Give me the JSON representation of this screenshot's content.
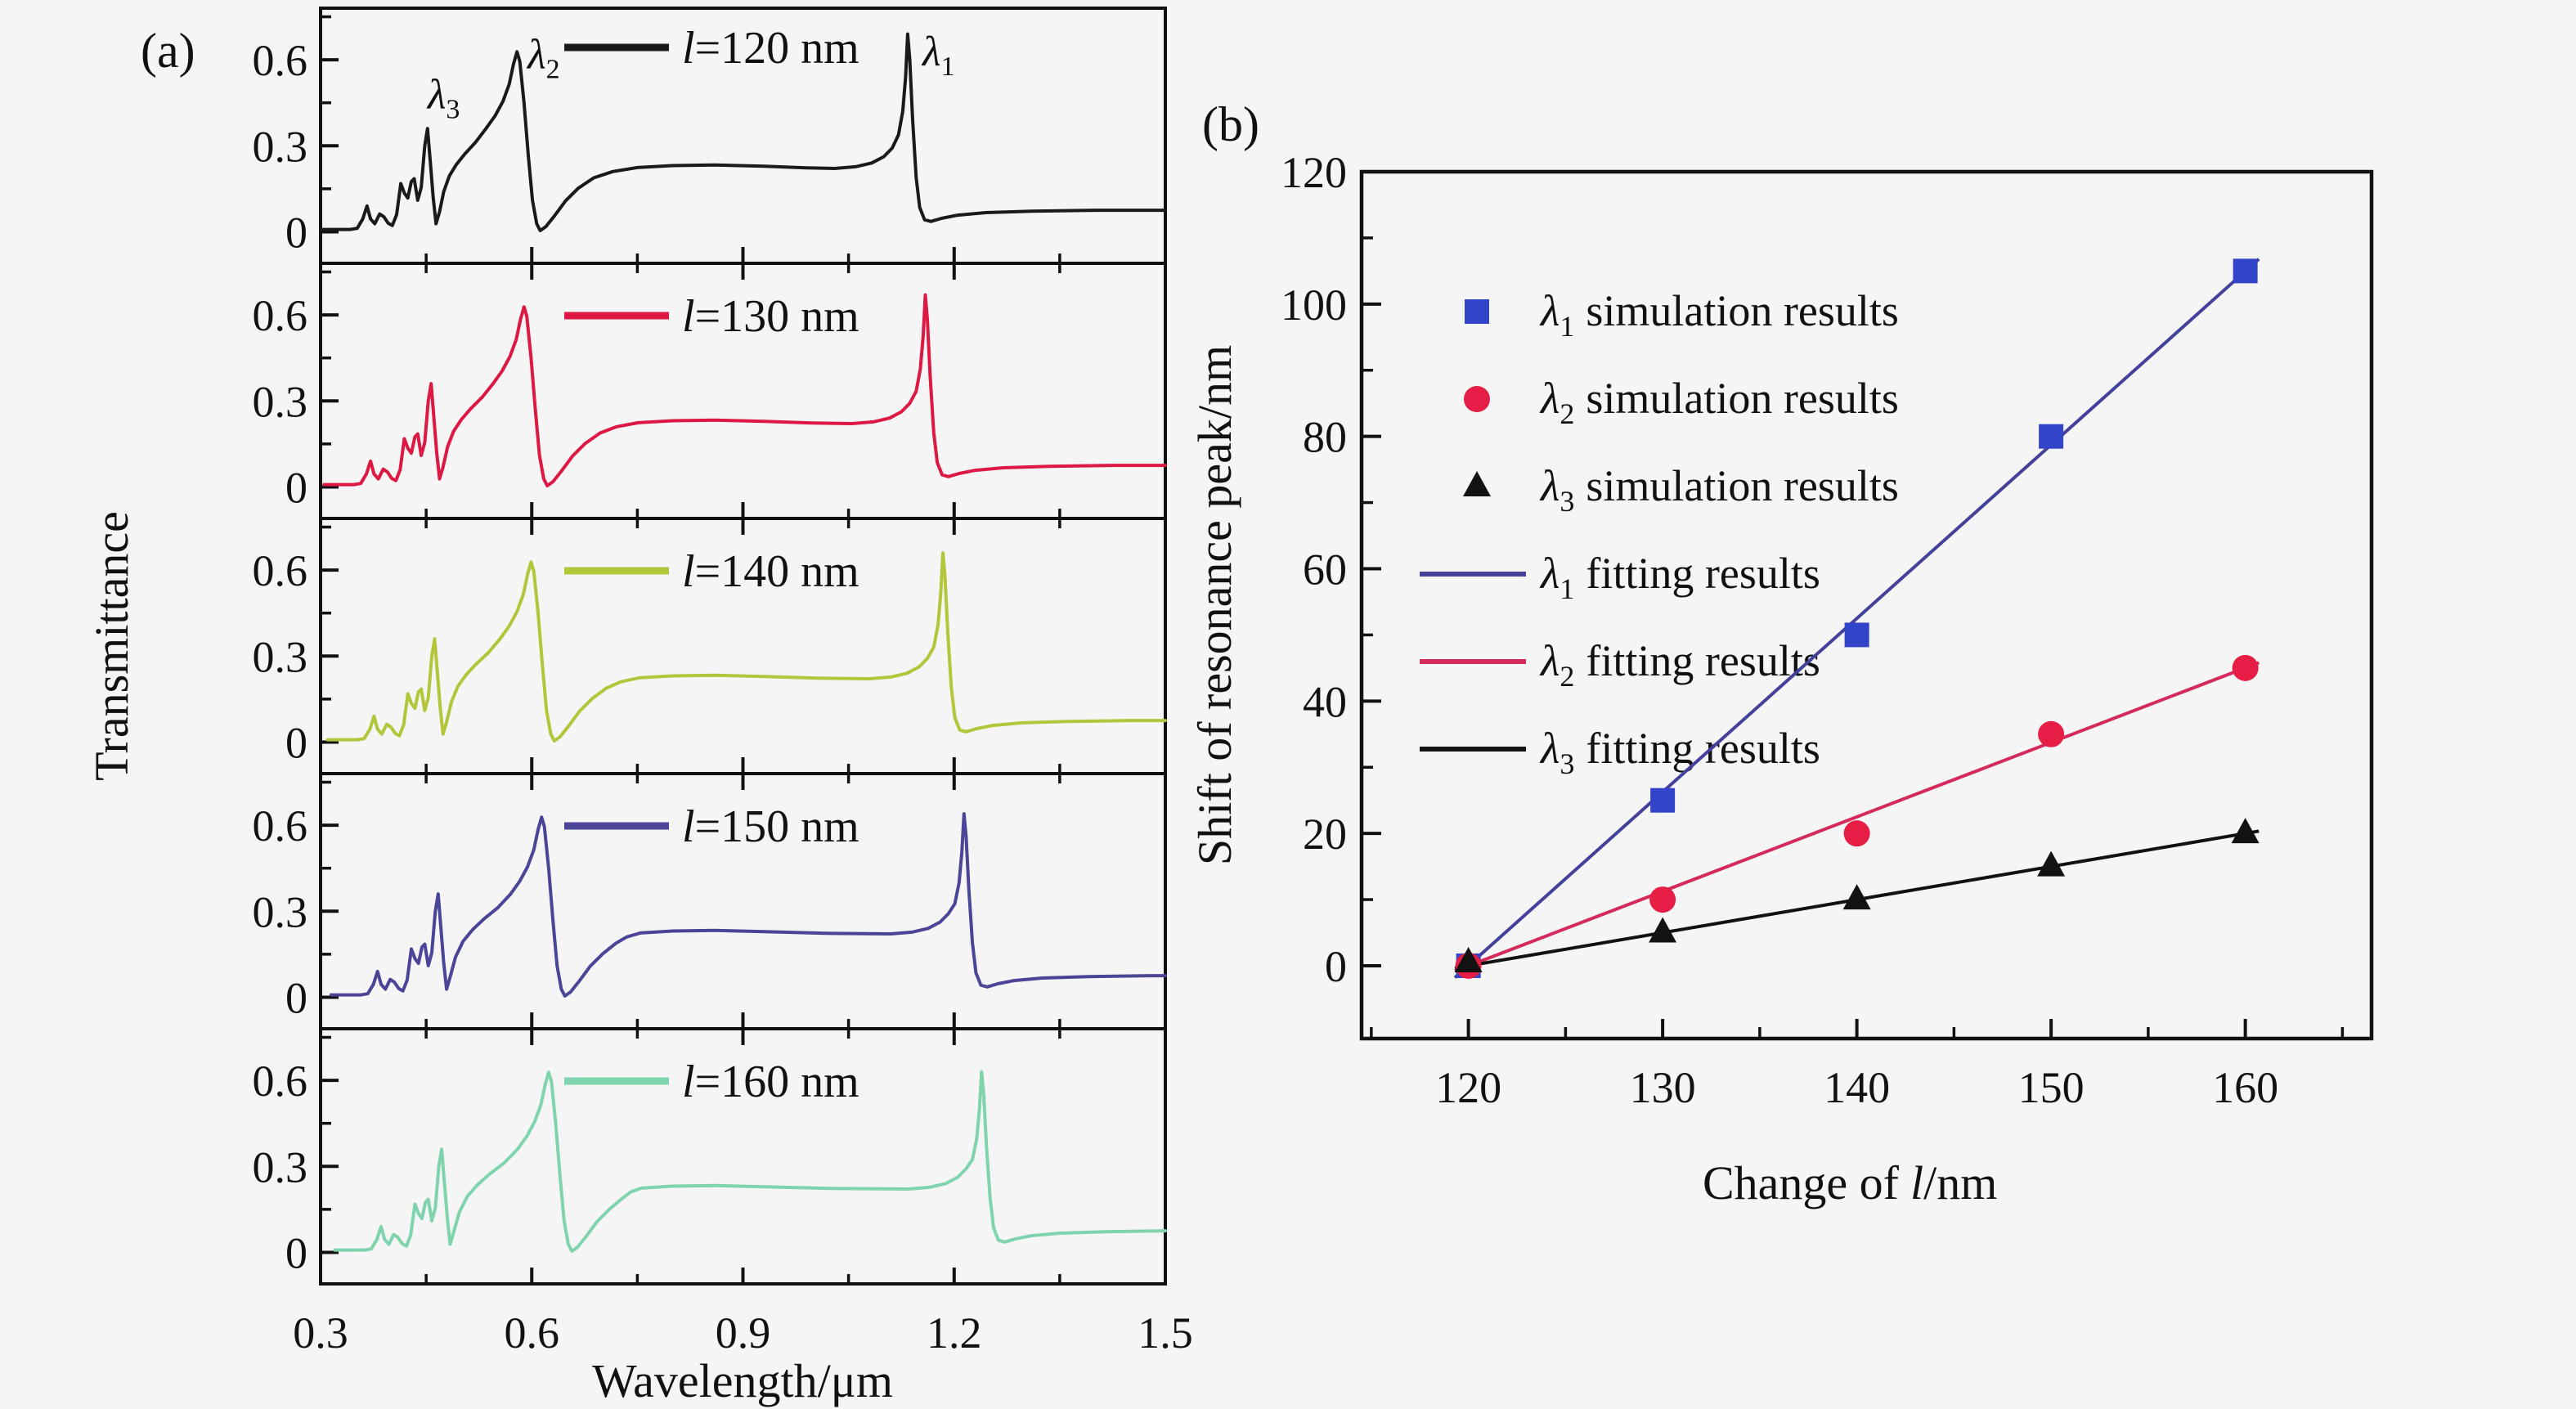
{
  "figure": {
    "panel_a_letter": "(a)",
    "panel_b_letter": "(b)",
    "background": "#f5f5f5",
    "axis_color": "#111111"
  },
  "chart_data": [
    {
      "type": "line",
      "id": "transmittance-spectra",
      "xlabel": "Wavelength/μm",
      "ylabel": "Transmittance",
      "x_range": [
        0.3,
        1.5
      ],
      "y_view": [
        -0.11,
        0.78
      ],
      "x_ticks": [
        0.3,
        0.6,
        0.9,
        1.2,
        1.5
      ],
      "x_minor": [
        0.45,
        0.75,
        1.05,
        1.35
      ],
      "x_inner_major": [
        0.6,
        0.9,
        1.2
      ],
      "y_ticks": [
        0,
        0.3,
        0.6
      ],
      "y_minor": [
        0.15,
        0.45,
        0.75
      ],
      "annotations": [
        {
          "sym": "λ",
          "sub": "3",
          "x": 0.452,
          "y": 0.43
        },
        {
          "sym": "λ",
          "sub": "2",
          "x": 0.594,
          "y": 0.57
        },
        {
          "sym": "λ",
          "sub": "1",
          "x": 1.155,
          "y": 0.58
        }
      ],
      "base_points": [
        [
          0.3,
          0.008
        ],
        [
          0.342,
          0.008
        ],
        [
          0.352,
          0.012
        ],
        [
          0.36,
          0.045
        ],
        [
          0.366,
          0.09
        ],
        [
          0.371,
          0.045
        ],
        [
          0.377,
          0.028
        ],
        [
          0.384,
          0.062
        ],
        [
          0.39,
          0.052
        ],
        [
          0.396,
          0.03
        ],
        [
          0.402,
          0.022
        ],
        [
          0.408,
          0.06
        ],
        [
          0.414,
          0.168
        ],
        [
          0.419,
          0.135
        ],
        [
          0.424,
          0.118
        ],
        [
          0.429,
          0.175
        ],
        [
          0.433,
          0.185
        ],
        [
          0.438,
          0.11
        ],
        [
          0.443,
          0.155
        ],
        [
          0.448,
          0.3
        ],
        [
          0.452,
          0.36
        ],
        [
          0.456,
          0.24
        ],
        [
          0.46,
          0.12
        ],
        [
          0.464,
          0.028
        ],
        [
          0.469,
          0.07
        ],
        [
          0.475,
          0.14
        ],
        [
          0.483,
          0.195
        ],
        [
          0.493,
          0.235
        ],
        [
          0.505,
          0.272
        ],
        [
          0.52,
          0.312
        ],
        [
          0.535,
          0.36
        ],
        [
          0.548,
          0.405
        ],
        [
          0.559,
          0.455
        ],
        [
          0.568,
          0.515
        ],
        [
          0.574,
          0.585
        ],
        [
          0.579,
          0.628
        ],
        [
          0.583,
          0.595
        ],
        [
          0.589,
          0.45
        ],
        [
          0.595,
          0.27
        ],
        [
          0.601,
          0.11
        ],
        [
          0.607,
          0.028
        ],
        [
          0.612,
          0.004
        ],
        [
          0.62,
          0.018
        ],
        [
          0.633,
          0.058
        ],
        [
          0.648,
          0.108
        ],
        [
          0.666,
          0.152
        ],
        [
          0.688,
          0.188
        ],
        [
          0.715,
          0.21
        ],
        [
          0.75,
          0.224
        ],
        [
          0.8,
          0.231
        ],
        [
          0.86,
          0.233
        ],
        [
          0.93,
          0.229
        ],
        [
          0.99,
          0.223
        ],
        [
          1.03,
          0.221
        ],
        [
          1.06,
          0.227
        ],
        [
          1.083,
          0.24
        ],
        [
          1.1,
          0.262
        ],
        [
          1.112,
          0.292
        ],
        [
          1.121,
          0.338
        ],
        [
          1.127,
          0.42
        ],
        [
          1.131,
          0.54
        ],
        [
          1.134,
          0.69
        ],
        [
          1.137,
          0.6
        ],
        [
          1.141,
          0.39
        ],
        [
          1.146,
          0.19
        ],
        [
          1.151,
          0.085
        ],
        [
          1.158,
          0.042
        ],
        [
          1.167,
          0.036
        ],
        [
          1.182,
          0.047
        ],
        [
          1.205,
          0.058
        ],
        [
          1.245,
          0.067
        ],
        [
          1.31,
          0.072
        ],
        [
          1.4,
          0.075
        ],
        [
          1.5,
          0.075
        ]
      ],
      "series": [
        {
          "legend_sym": "l",
          "legend_rest": "=120 nm",
          "color": "#1a1a1a",
          "shift_l1_nm": 0,
          "shift_l2_nm": 0,
          "shift_l3_nm": 0,
          "l1_peak": 0.69
        },
        {
          "legend_sym": "l",
          "legend_rest": "=130 nm",
          "color": "#dc1843",
          "shift_l1_nm": 25,
          "shift_l2_nm": 10,
          "shift_l3_nm": 5,
          "l1_peak": 0.67
        },
        {
          "legend_sym": "l",
          "legend_rest": "=140 nm",
          "color": "#b3c53a",
          "shift_l1_nm": 50,
          "shift_l2_nm": 20,
          "shift_l3_nm": 10,
          "l1_peak": 0.66
        },
        {
          "legend_sym": "l",
          "legend_rest": "=150 nm",
          "color": "#4a4596",
          "shift_l1_nm": 80,
          "shift_l2_nm": 35,
          "shift_l3_nm": 15,
          "l1_peak": 0.64
        },
        {
          "legend_sym": "l",
          "legend_rest": "=160 nm",
          "color": "#7fd4ae",
          "shift_l1_nm": 105,
          "shift_l2_nm": 45,
          "shift_l3_nm": 20,
          "l1_peak": 0.63
        }
      ]
    },
    {
      "type": "scatter",
      "id": "resonance-peak-shift",
      "xlabel_parts": [
        "Change of",
        "l",
        "/nm"
      ],
      "ylabel": "Shift of resonance peak/nm",
      "x_range": [
        114.5,
        166.5
      ],
      "y_range": [
        -11,
        120
      ],
      "x_ticks": [
        120,
        130,
        140,
        150,
        160
      ],
      "x_minor": [
        115,
        125,
        135,
        145,
        155,
        165
      ],
      "y_ticks": [
        0,
        20,
        40,
        60,
        80,
        100,
        120
      ],
      "y_minor": [
        10,
        30,
        50,
        70,
        90,
        110
      ],
      "series": [
        {
          "sym": "λ",
          "sub": "1",
          "rest": "simulation results",
          "marker": "square",
          "color": "#3244c8",
          "x": [
            120,
            130,
            140,
            150,
            160
          ],
          "y": [
            0,
            25,
            50,
            80,
            105
          ]
        },
        {
          "sym": "λ",
          "sub": "2",
          "rest": "simulation results",
          "marker": "circle",
          "color": "#e61e46",
          "x": [
            120,
            130,
            140,
            150,
            160
          ],
          "y": [
            0,
            10,
            20,
            35,
            45
          ]
        },
        {
          "sym": "λ",
          "sub": "3",
          "rest": "simulation results",
          "marker": "triangle",
          "color": "#121212",
          "x": [
            120,
            130,
            140,
            150,
            160
          ],
          "y": [
            0.5,
            5,
            10,
            15,
            20
          ]
        }
      ],
      "fits": [
        {
          "sym": "λ",
          "sub": "1",
          "rest": "fitting results",
          "color": "#45409a",
          "x": [
            119.3,
            160.7
          ],
          "y": [
            -1.8,
            106.8
          ]
        },
        {
          "sym": "λ",
          "sub": "2",
          "rest": "fitting results",
          "color": "#d42a5c",
          "x": [
            119.3,
            160.7
          ],
          "y": [
            -0.8,
            45.8
          ]
        },
        {
          "sym": "λ",
          "sub": "3",
          "rest": "fitting results",
          "color": "#121212",
          "x": [
            119.3,
            160.7
          ],
          "y": [
            -0.35,
            20.35
          ]
        }
      ]
    }
  ]
}
